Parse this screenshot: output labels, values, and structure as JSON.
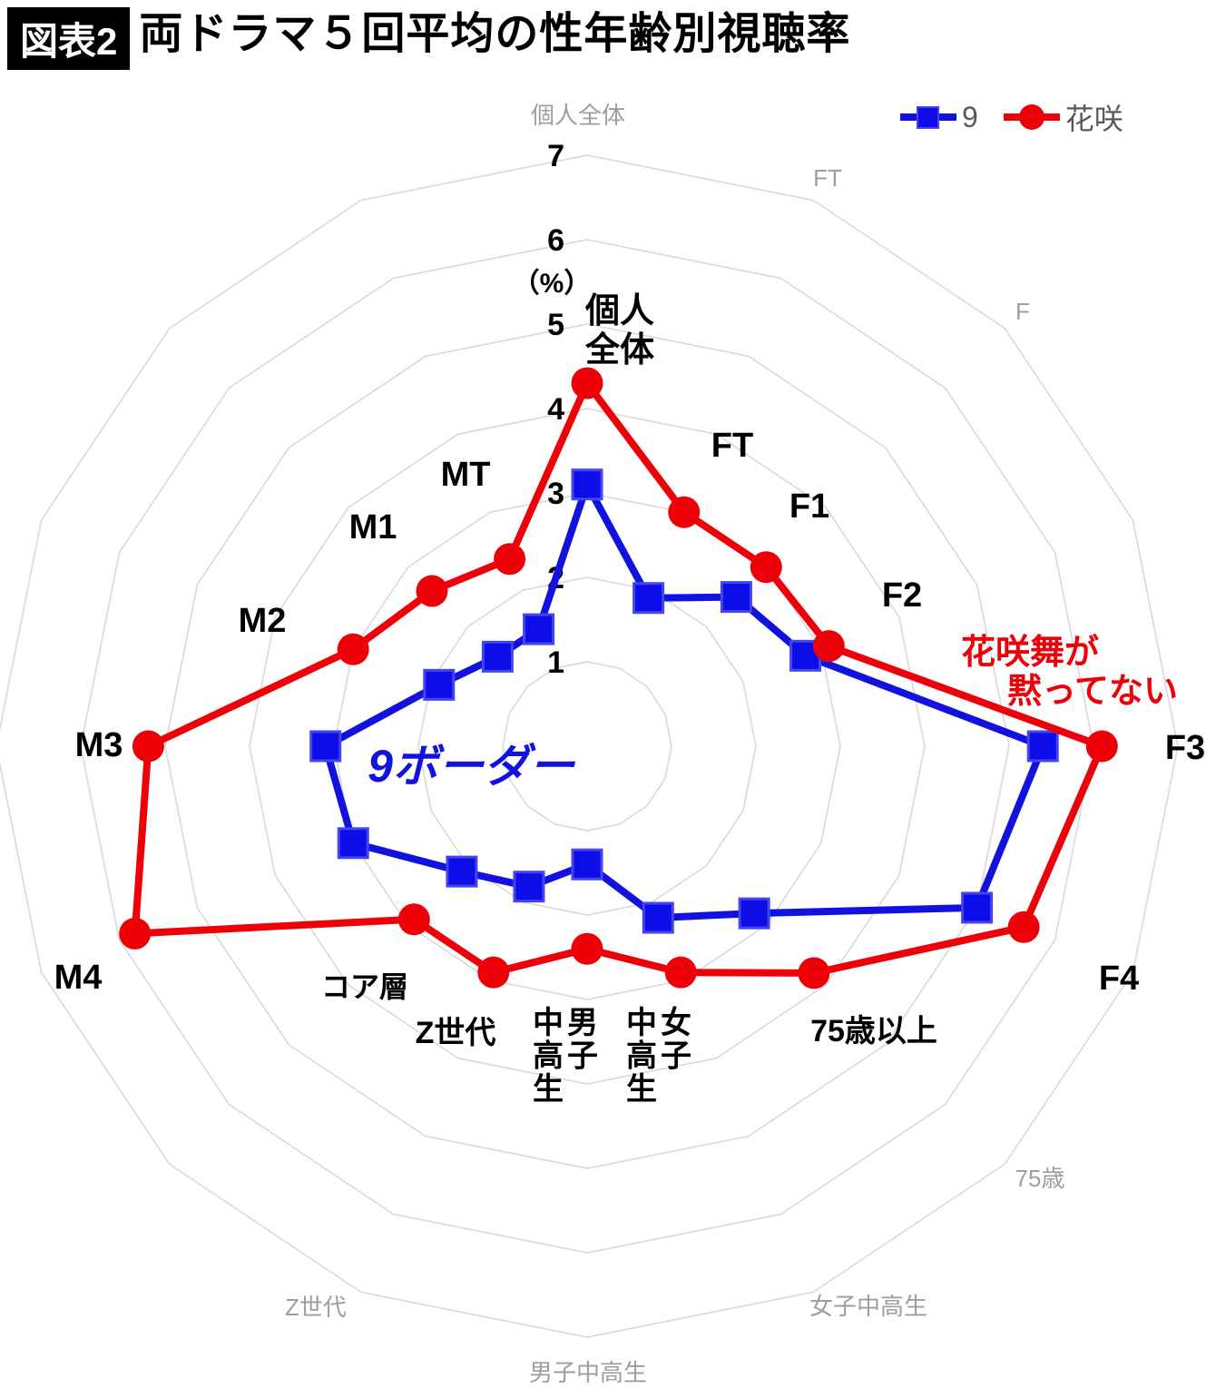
{
  "title": {
    "badge": "図表2",
    "text": "両ドラマ５回平均の性年齢別視聴率"
  },
  "legend": [
    {
      "label": "9",
      "marker": "square",
      "color": "#1212e0"
    },
    {
      "label": "花咲",
      "marker": "circle",
      "color": "#ee0008"
    }
  ],
  "chart_data": {
    "type": "radar",
    "unit_label": "（%）",
    "r_ticks": [
      1,
      2,
      3,
      4,
      5,
      6,
      7
    ],
    "r_max": 7,
    "grid_color": "#d9d9d9",
    "categories": [
      "個人全体",
      "FT",
      "F1",
      "F2",
      "F3",
      "F4",
      "75歳以上",
      "女子中高生",
      "男子中高生",
      "Z世代",
      "コア層",
      "M4",
      "M3",
      "M2",
      "M1",
      "MT"
    ],
    "series": [
      {
        "name": "9",
        "color": "#1212e0",
        "marker_fill": "#0d0de8",
        "marker": "square",
        "values": [
          3.1,
          1.9,
          2.5,
          2.8,
          5.4,
          5.0,
          2.8,
          2.2,
          1.4,
          1.8,
          2.1,
          3.0,
          3.1,
          1.9,
          1.5,
          1.5
        ]
      },
      {
        "name": "花咲",
        "color": "#ee0008",
        "marker_fill": "#ee0008",
        "marker": "circle",
        "values": [
          4.3,
          3.0,
          3.0,
          3.1,
          6.1,
          5.6,
          3.8,
          2.9,
          2.4,
          2.9,
          2.9,
          5.8,
          5.2,
          3.0,
          2.6,
          2.4
        ]
      }
    ],
    "bold_axis_labels": [
      {
        "axis": 0,
        "lines": [
          "個人",
          "全体"
        ]
      },
      {
        "axis": 1,
        "text": "FT"
      },
      {
        "axis": 2,
        "text": "F1"
      },
      {
        "axis": 3,
        "text": "F2"
      },
      {
        "axis": 4,
        "text": "F3"
      },
      {
        "axis": 5,
        "text": "F4"
      },
      {
        "axis": 6,
        "text": "75歳以上"
      },
      {
        "axis": 7,
        "vertical": [
          "女子",
          "中高生"
        ]
      },
      {
        "axis": 8,
        "vertical": [
          "男子",
          "中高生"
        ]
      },
      {
        "axis": 9,
        "text": "Z世代"
      },
      {
        "axis": 10,
        "text": "コア層"
      },
      {
        "axis": 11,
        "text": "M4"
      },
      {
        "axis": 12,
        "text": "M3"
      },
      {
        "axis": 13,
        "text": "M2"
      },
      {
        "axis": 14,
        "text": "M1"
      },
      {
        "axis": 15,
        "text": "MT"
      }
    ],
    "outer_faint_labels": [
      {
        "axis": 0,
        "text": "個人全体"
      },
      {
        "axis": 1,
        "text": "FT"
      },
      {
        "axis": 2,
        "text": "F"
      },
      {
        "axis": 6,
        "text": "75歳"
      },
      {
        "axis": 7,
        "text": "女子中高生"
      },
      {
        "axis": 8,
        "text": "男子中高生"
      },
      {
        "axis": 9,
        "text": "Z世代"
      }
    ],
    "annotations": [
      {
        "id": "blue-note",
        "text": "9ボーダー",
        "color": "#1212e0"
      },
      {
        "id": "red-note-line1",
        "text": "花咲舞が",
        "color": "#ee0008"
      },
      {
        "id": "red-note-line2",
        "text": "黙ってない",
        "color": "#ee0008"
      }
    ]
  }
}
